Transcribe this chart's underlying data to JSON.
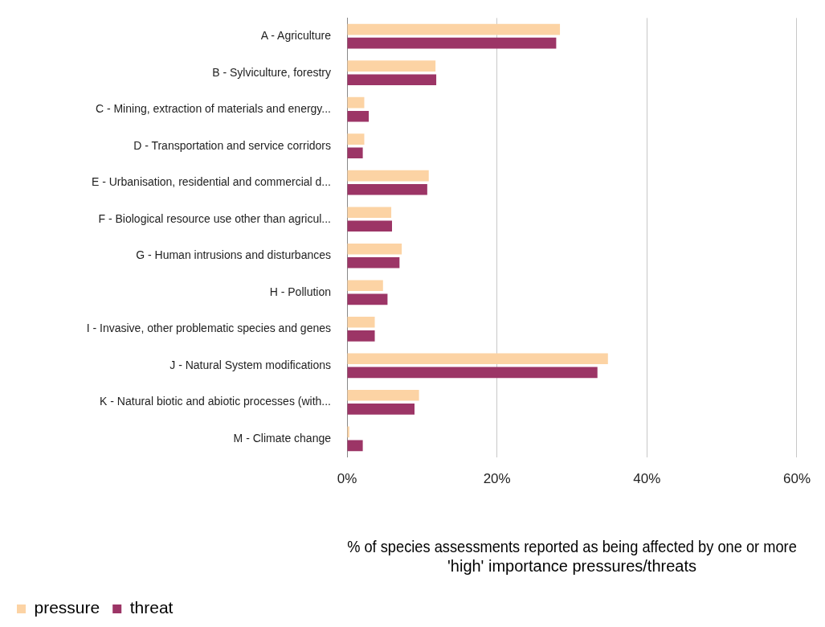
{
  "chart_data": {
    "type": "bar",
    "orientation": "horizontal",
    "xlabel": "% of species assessments reported as being affected by one or more 'high' importance pressures/threats",
    "categories": [
      "A - Agriculture",
      "B - Sylviculture, forestry",
      "C - Mining, extraction of materials and energy...",
      "D - Transportation and service corridors",
      "E - Urbanisation, residential and commercial d...",
      "F - Biological resource use other than agricul...",
      "G - Human intrusions and disturbances",
      "H - Pollution",
      "I - Invasive, other problematic species and genes",
      "J - Natural System modifications",
      "K - Natural biotic and abiotic processes (with...",
      "M - Climate change"
    ],
    "series": [
      {
        "name": "pressure",
        "color": "#fcd3a4",
        "values": [
          28.4,
          11.8,
          2.3,
          2.3,
          10.9,
          5.9,
          7.3,
          4.8,
          3.7,
          34.8,
          9.6,
          0.3
        ]
      },
      {
        "name": "threat",
        "color": "#9c3566",
        "values": [
          27.9,
          11.9,
          2.9,
          2.1,
          10.7,
          6.0,
          7.0,
          5.4,
          3.7,
          33.4,
          9.0,
          2.1
        ]
      }
    ],
    "xlim": [
      0,
      60
    ],
    "xticks": [
      {
        "value": 0,
        "label": "0%"
      },
      {
        "value": 20,
        "label": "20%"
      },
      {
        "value": 40,
        "label": "40%"
      },
      {
        "value": 60,
        "label": "60%"
      }
    ],
    "grid": "x",
    "legend": "bottom left"
  }
}
